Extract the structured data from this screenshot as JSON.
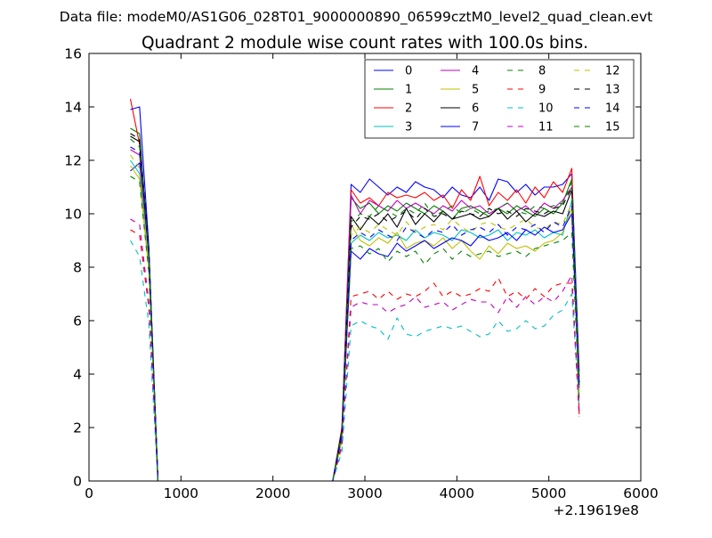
{
  "suptitle": "Data file: modeM0/AS1G06_028T01_9000000890_06599cztM0_level2_quad_clean.evt",
  "chart_data": {
    "type": "line",
    "title": "Quadrant 2 module wise count rates with 100.0s bins.",
    "xlabel": "",
    "ylabel": "",
    "x_offset_label": "+2.19619e8",
    "xlim": [
      0,
      6000
    ],
    "ylim": [
      0,
      16
    ],
    "x_ticks": [
      0,
      1000,
      2000,
      3000,
      4000,
      5000,
      6000
    ],
    "x_tick_labels": [
      "0",
      "1000",
      "2000",
      "3000",
      "4000",
      "5000",
      "6000"
    ],
    "y_ticks": [
      0,
      2,
      4,
      6,
      8,
      10,
      12,
      14,
      16
    ],
    "y_tick_labels": [
      "0",
      "2",
      "4",
      "6",
      "8",
      "10",
      "12",
      "14",
      "16"
    ],
    "grid": false,
    "legend_position": "top-right",
    "legend_columns": 4,
    "x": [
      450,
      550,
      650,
      750,
      850,
      950,
      1050,
      1150,
      1250,
      1350,
      1450,
      1550,
      1650,
      1750,
      1850,
      1950,
      2050,
      2150,
      2250,
      2350,
      2450,
      2550,
      2650,
      2750,
      2850,
      2950,
      3050,
      3150,
      3250,
      3350,
      3450,
      3550,
      3650,
      3750,
      3850,
      3950,
      4050,
      4150,
      4250,
      4350,
      4450,
      4550,
      4650,
      4750,
      4850,
      4950,
      5050,
      5150,
      5250,
      5330
    ],
    "series": [
      {
        "name": "0",
        "color": "#0000ff",
        "dash": "solid",
        "values": [
          11.6,
          11.9,
          8.5,
          0,
          0,
          0,
          0,
          0,
          0,
          0,
          0,
          0,
          0,
          0,
          0,
          0,
          0,
          0,
          0,
          0,
          0,
          0,
          0,
          1.9,
          11.1,
          10.8,
          11.3,
          11.0,
          10.7,
          11.0,
          10.8,
          11.2,
          11.0,
          10.9,
          10.6,
          11.0,
          10.7,
          10.6,
          11.0,
          10.5,
          11.3,
          11.2,
          10.8,
          11.1,
          10.7,
          11.0,
          11.0,
          11.1,
          11.5,
          4.1
        ]
      },
      {
        "name": "1",
        "color": "#008000",
        "dash": "solid",
        "values": [
          13.2,
          13.0,
          8.3,
          0,
          0,
          0,
          0,
          0,
          0,
          0,
          0,
          0,
          0,
          0,
          0,
          0,
          0,
          0,
          0,
          0,
          0,
          0,
          0,
          1.7,
          10.6,
          10.2,
          10.4,
          10.0,
          10.3,
          10.1,
          10.4,
          10.2,
          10.0,
          10.3,
          10.1,
          9.8,
          10.2,
          10.3,
          10.1,
          9.9,
          10.2,
          10.0,
          10.3,
          10.1,
          9.9,
          10.2,
          10.0,
          10.4,
          11.3,
          3.7
        ]
      },
      {
        "name": "2",
        "color": "#ff0000",
        "dash": "solid",
        "values": [
          14.3,
          12.6,
          8.7,
          0,
          0,
          0,
          0,
          0,
          0,
          0,
          0,
          0,
          0,
          0,
          0,
          0,
          0,
          0,
          0,
          0,
          0,
          0,
          0,
          2.0,
          10.9,
          10.4,
          10.6,
          10.3,
          10.8,
          10.6,
          10.7,
          10.6,
          10.8,
          10.5,
          10.7,
          10.2,
          10.9,
          10.5,
          11.4,
          10.3,
          10.8,
          10.5,
          10.9,
          10.4,
          11.0,
          10.6,
          11.2,
          10.8,
          11.7,
          2.5
        ]
      },
      {
        "name": "3",
        "color": "#00bfbf",
        "dash": "solid",
        "values": [
          12.0,
          11.5,
          8.0,
          0,
          0,
          0,
          0,
          0,
          0,
          0,
          0,
          0,
          0,
          0,
          0,
          0,
          0,
          0,
          0,
          0,
          0,
          0,
          0,
          1.6,
          8.9,
          9.2,
          9.0,
          9.3,
          9.1,
          9.2,
          9.0,
          9.4,
          9.1,
          9.3,
          9.2,
          9.0,
          9.4,
          9.3,
          9.1,
          9.2,
          9.4,
          9.0,
          9.3,
          9.2,
          9.4,
          9.1,
          9.3,
          9.2,
          10.5,
          3.4
        ]
      },
      {
        "name": "4",
        "color": "#bf00bf",
        "dash": "solid",
        "values": [
          12.4,
          12.2,
          8.4,
          0,
          0,
          0,
          0,
          0,
          0,
          0,
          0,
          0,
          0,
          0,
          0,
          0,
          0,
          0,
          0,
          0,
          0,
          0,
          0,
          1.8,
          10.7,
          10.0,
          10.5,
          10.3,
          10.1,
          10.5,
          10.2,
          10.4,
          10.2,
          10.0,
          10.3,
          10.1,
          10.5,
          10.2,
          10.3,
          10.0,
          10.2,
          10.4,
          10.1,
          10.3,
          10.0,
          10.4,
          10.2,
          10.5,
          11.0,
          3.9
        ]
      },
      {
        "name": "5",
        "color": "#bfbf00",
        "dash": "solid",
        "values": [
          11.8,
          11.3,
          7.9,
          0,
          0,
          0,
          0,
          0,
          0,
          0,
          0,
          0,
          0,
          0,
          0,
          0,
          0,
          0,
          0,
          0,
          0,
          0,
          0,
          1.5,
          9.6,
          9.0,
          8.8,
          9.1,
          8.9,
          9.3,
          8.7,
          8.9,
          9.0,
          8.8,
          9.1,
          8.7,
          9.0,
          8.6,
          8.3,
          8.8,
          8.5,
          8.9,
          8.7,
          8.8,
          8.6,
          8.9,
          9.0,
          9.3,
          10.2,
          3.3
        ]
      },
      {
        "name": "6",
        "color": "#000000",
        "dash": "solid",
        "values": [
          12.9,
          12.7,
          8.6,
          0,
          0,
          0,
          0,
          0,
          0,
          0,
          0,
          0,
          0,
          0,
          0,
          0,
          0,
          0,
          0,
          0,
          0,
          0,
          0,
          1.9,
          9.9,
          9.4,
          9.9,
          9.6,
          10.0,
          9.5,
          10.2,
          9.6,
          10.0,
          9.7,
          10.1,
          9.8,
          9.9,
          10.0,
          9.8,
          9.9,
          10.2,
          9.8,
          10.1,
          9.7,
          10.0,
          9.9,
          10.1,
          10.0,
          10.9,
          3.6
        ]
      },
      {
        "name": "7",
        "color": "#0000ff",
        "dash": "solid",
        "values": [
          13.9,
          14.0,
          8.8,
          0,
          0,
          0,
          0,
          0,
          0,
          0,
          0,
          0,
          0,
          0,
          0,
          0,
          0,
          0,
          0,
          0,
          0,
          0,
          0,
          1.8,
          8.6,
          8.3,
          8.7,
          8.5,
          8.4,
          8.9,
          8.6,
          8.8,
          9.0,
          8.7,
          8.9,
          9.1,
          9.0,
          8.8,
          9.2,
          9.0,
          9.1,
          9.3,
          9.0,
          9.4,
          9.2,
          9.5,
          9.3,
          9.4,
          10.0,
          3.5
        ]
      },
      {
        "name": "8",
        "color": "#008000",
        "dash": "dashed",
        "values": [
          11.4,
          11.2,
          7.8,
          0,
          0,
          0,
          0,
          0,
          0,
          0,
          0,
          0,
          0,
          0,
          0,
          0,
          0,
          0,
          0,
          0,
          0,
          0,
          0,
          1.5,
          8.7,
          8.8,
          8.5,
          8.7,
          8.2,
          8.6,
          8.4,
          8.6,
          8.1,
          8.5,
          8.7,
          8.3,
          8.6,
          8.4,
          8.5,
          8.6,
          8.4,
          8.5,
          8.6,
          8.4,
          8.7,
          8.8,
          8.9,
          9.0,
          9.3,
          3.1
        ]
      },
      {
        "name": "9",
        "color": "#ff0000",
        "dash": "dashed",
        "values": [
          9.4,
          9.2,
          6.5,
          0,
          0,
          0,
          0,
          0,
          0,
          0,
          0,
          0,
          0,
          0,
          0,
          0,
          0,
          0,
          0,
          0,
          0,
          0,
          0,
          1.3,
          6.9,
          7.0,
          7.1,
          6.8,
          7.1,
          6.8,
          7.0,
          6.9,
          7.1,
          7.4,
          6.9,
          7.1,
          6.9,
          7.0,
          7.2,
          7.1,
          7.6,
          6.9,
          7.1,
          6.8,
          7.2,
          6.9,
          7.3,
          7.4,
          7.4,
          2.4
        ]
      },
      {
        "name": "10",
        "color": "#00bfbf",
        "dash": "dashed",
        "values": [
          9.0,
          8.4,
          5.9,
          0,
          0,
          0,
          0,
          0,
          0,
          0,
          0,
          0,
          0,
          0,
          0,
          0,
          0,
          0,
          0,
          0,
          0,
          0,
          0,
          1.1,
          5.8,
          6.0,
          5.8,
          5.7,
          5.3,
          6.1,
          5.5,
          5.4,
          5.6,
          5.7,
          5.8,
          5.7,
          5.8,
          5.6,
          5.4,
          5.5,
          6.0,
          5.6,
          5.7,
          6.0,
          5.7,
          5.8,
          6.2,
          6.4,
          7.0,
          2.8
        ]
      },
      {
        "name": "11",
        "color": "#bf00bf",
        "dash": "dashed",
        "values": [
          9.8,
          9.6,
          6.7,
          0,
          0,
          0,
          0,
          0,
          0,
          0,
          0,
          0,
          0,
          0,
          0,
          0,
          0,
          0,
          0,
          0,
          0,
          0,
          0,
          1.4,
          6.5,
          6.7,
          6.6,
          6.6,
          6.3,
          6.5,
          6.6,
          6.9,
          6.5,
          6.6,
          6.7,
          6.4,
          6.6,
          6.8,
          6.7,
          6.7,
          6.3,
          6.9,
          6.5,
          6.9,
          6.6,
          6.9,
          6.7,
          7.1,
          7.7,
          2.6
        ]
      },
      {
        "name": "12",
        "color": "#bfbf00",
        "dash": "dashed",
        "values": [
          12.2,
          11.7,
          8.1,
          0,
          0,
          0,
          0,
          0,
          0,
          0,
          0,
          0,
          0,
          0,
          0,
          0,
          0,
          0,
          0,
          0,
          0,
          0,
          0,
          1.6,
          9.2,
          9.5,
          9.3,
          9.6,
          9.4,
          9.2,
          9.7,
          9.3,
          9.5,
          9.6,
          9.4,
          9.8,
          9.5,
          9.3,
          9.6,
          9.7,
          9.5,
          9.4,
          9.6,
          9.8,
          9.5,
          9.4,
          9.7,
          9.6,
          10.4,
          3.2
        ]
      },
      {
        "name": "13",
        "color": "#000000",
        "dash": "dashed",
        "values": [
          13.0,
          12.8,
          8.7,
          0,
          0,
          0,
          0,
          0,
          0,
          0,
          0,
          0,
          0,
          0,
          0,
          0,
          0,
          0,
          0,
          0,
          0,
          0,
          0,
          1.7,
          9.5,
          9.9,
          9.8,
          10.0,
          9.7,
          9.9,
          10.1,
          9.8,
          10.2,
          9.9,
          10.0,
          9.8,
          10.1,
          10.0,
          9.9,
          10.2,
          10.0,
          10.1,
          9.9,
          10.2,
          10.1,
          10.0,
          10.2,
          10.3,
          11.0,
          3.7
        ]
      },
      {
        "name": "14",
        "color": "#0000ff",
        "dash": "dashed",
        "values": [
          12.5,
          12.3,
          8.4,
          0,
          0,
          0,
          0,
          0,
          0,
          0,
          0,
          0,
          0,
          0,
          0,
          0,
          0,
          0,
          0,
          0,
          0,
          0,
          0,
          1.7,
          9.0,
          9.3,
          9.1,
          9.4,
          9.2,
          9.0,
          9.5,
          9.3,
          9.1,
          9.4,
          9.3,
          9.6,
          9.2,
          9.4,
          9.5,
          9.3,
          9.6,
          9.2,
          9.5,
          9.4,
          9.6,
          9.3,
          9.7,
          9.5,
          10.3,
          3.5
        ]
      },
      {
        "name": "15",
        "color": "#008000",
        "dash": "dashed",
        "values": [
          12.8,
          12.5,
          8.5,
          0,
          0,
          0,
          0,
          0,
          0,
          0,
          0,
          0,
          0,
          0,
          0,
          0,
          0,
          0,
          0,
          0,
          0,
          0,
          0,
          1.8,
          9.7,
          10.0,
          9.9,
          10.3,
          10.1,
          9.9,
          10.2,
          10.0,
          10.4,
          9.9,
          10.1,
          10.3,
          10.0,
          10.2,
          10.0,
          10.1,
          10.2,
          10.4,
          10.1,
          10.0,
          10.3,
          10.2,
          10.3,
          10.4,
          11.2,
          3.8
        ]
      }
    ]
  }
}
